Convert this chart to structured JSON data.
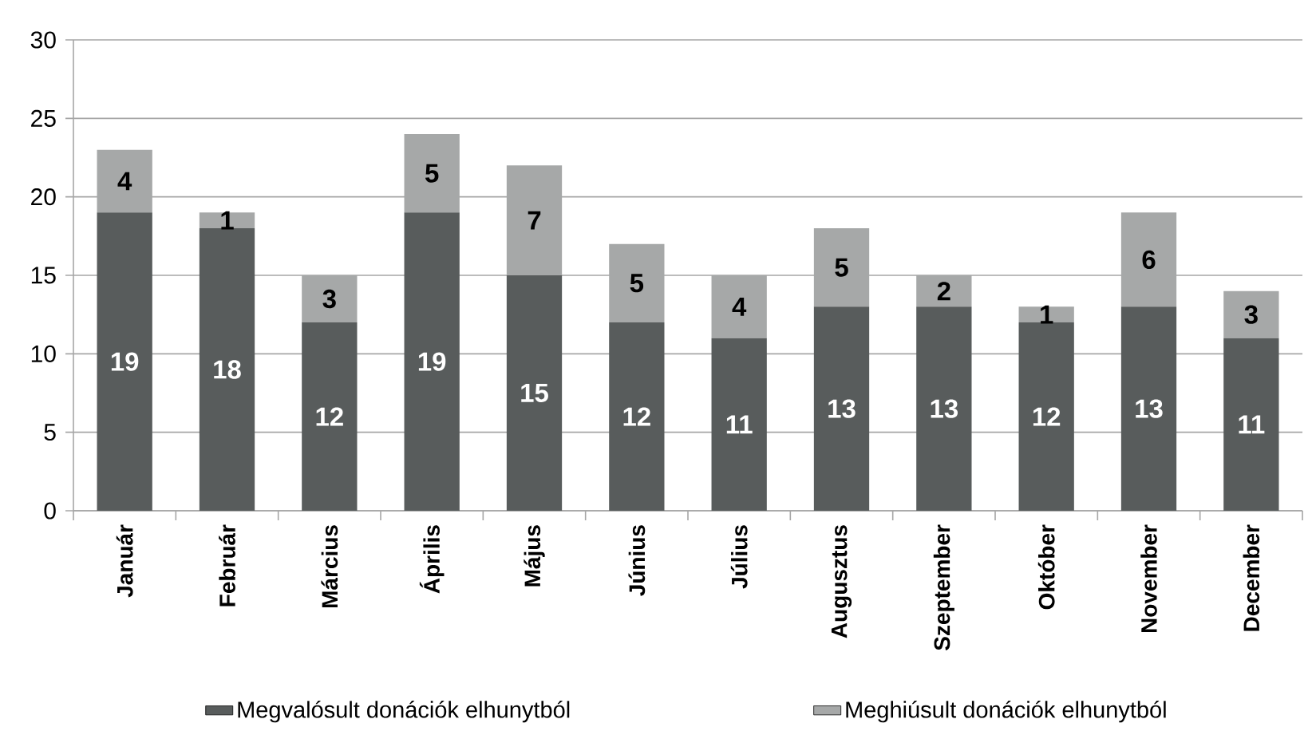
{
  "chart_data": {
    "type": "bar",
    "stacked": true,
    "categories": [
      "Január",
      "Február",
      "Március",
      "Április",
      "Május",
      "Június",
      "Július",
      "Augusztus",
      "Szeptember",
      "Október",
      "November",
      "December"
    ],
    "series": [
      {
        "name": "Megvalósult donációk elhunytból",
        "color": "#585c5c",
        "values": [
          19,
          18,
          12,
          19,
          15,
          12,
          11,
          13,
          13,
          12,
          13,
          11
        ]
      },
      {
        "name": "Meghiúsult donációk elhunytból",
        "color": "#a6a8a8",
        "values": [
          4,
          1,
          3,
          5,
          7,
          5,
          4,
          5,
          2,
          1,
          6,
          3
        ]
      }
    ],
    "ylim": [
      0,
      30
    ],
    "yticks": [
      0,
      5,
      10,
      15,
      20,
      25,
      30
    ],
    "grid": "y",
    "legend": "bottom",
    "data_labels": true
  }
}
